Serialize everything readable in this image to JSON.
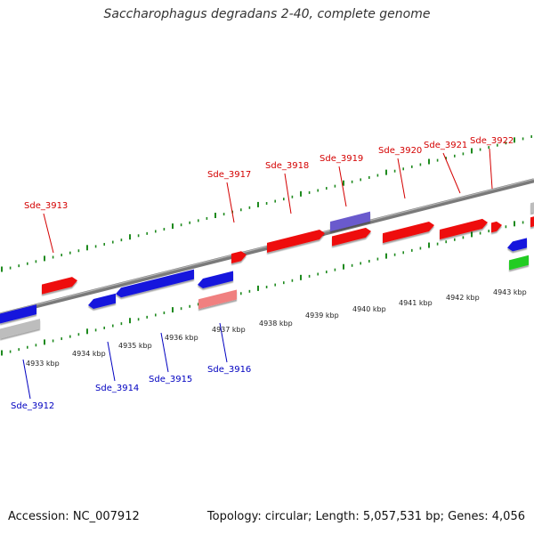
{
  "title": "Saccharophagus degradans 2-40, complete genome",
  "footer": {
    "accession": "Accession: NC_007912",
    "stats": "Topology: circular; Length: 5,057,531 bp; Genes: 4,056"
  },
  "colors": {
    "background": "#ffffff",
    "plus_label": "#d40000",
    "minus_label": "#0000c0",
    "tick": "#1e8a1e",
    "backbone": "#7a7a7a",
    "gene_red": "#ee1111",
    "gene_blue": "#1515dd",
    "gene_purple": "#6a5acd",
    "gene_pink": "#f08080",
    "gene_gray": "#bdbdbd",
    "gene_green": "#22cc22"
  },
  "scale": {
    "unit": "kbp",
    "tick_labels": [
      "4933 kbp",
      "4934 kbp",
      "4935 kbp",
      "4936 kbp",
      "4937 kbp",
      "4938 kbp",
      "4939 kbp",
      "4940 kbp",
      "4941 kbp",
      "4942 kbp",
      "4943 kbp"
    ]
  },
  "genes_plus": [
    {
      "label": "Sde_3913"
    },
    {
      "label": "Sde_3917"
    },
    {
      "label": "Sde_3918"
    },
    {
      "label": "Sde_3919"
    },
    {
      "label": "Sde_3920"
    },
    {
      "label": "Sde_3921"
    },
    {
      "label": "Sde_3922"
    }
  ],
  "genes_minus": [
    {
      "label": "Sde_3912"
    },
    {
      "label": "Sde_3914"
    },
    {
      "label": "Sde_3915"
    },
    {
      "label": "Sde_3916"
    }
  ]
}
